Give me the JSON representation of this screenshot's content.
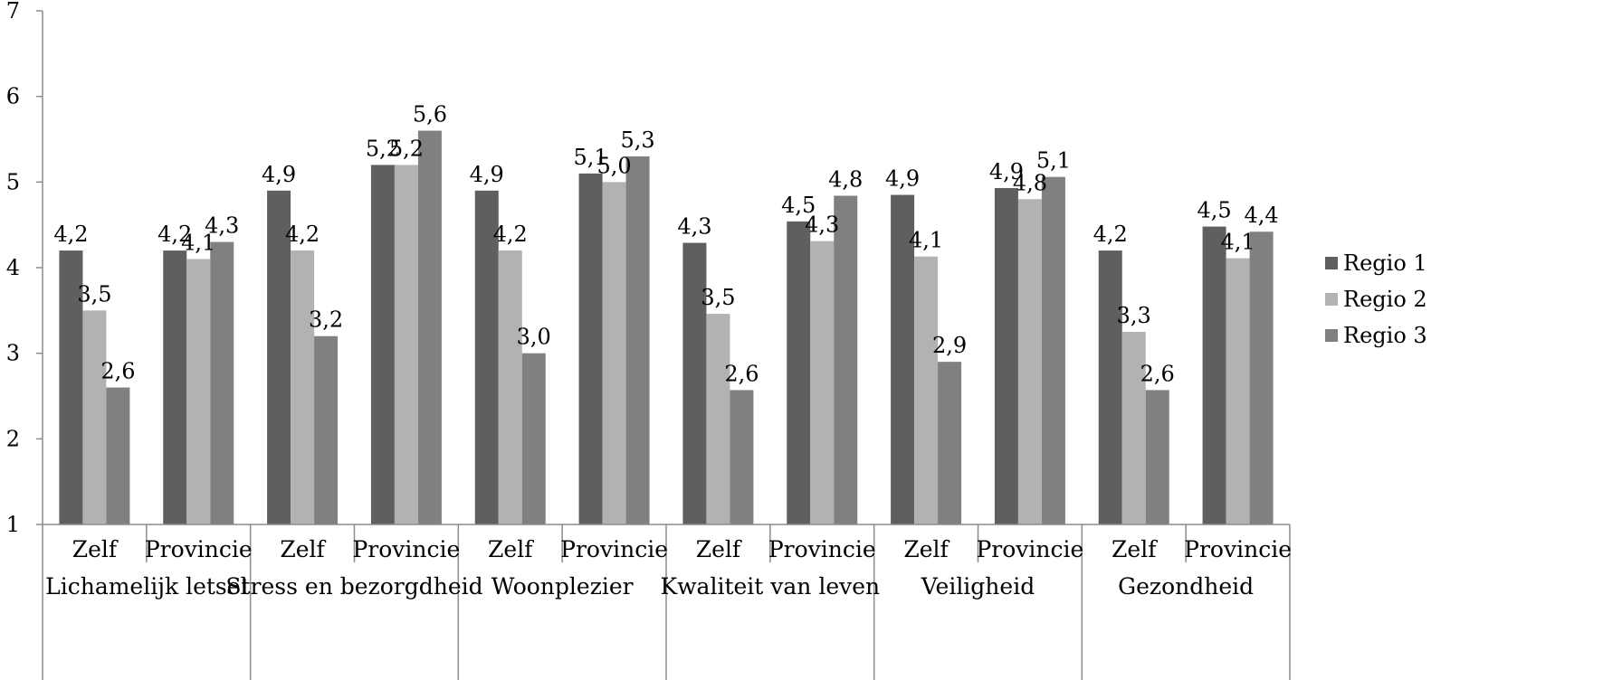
{
  "chart_data": {
    "type": "bar",
    "title": "",
    "xlabel": "",
    "ylabel": "",
    "ylim": [
      1,
      7
    ],
    "yticks": [
      "1",
      "2",
      "3",
      "4",
      "5",
      "6",
      "7"
    ],
    "grid": false,
    "legend_position": "right",
    "groups": [
      {
        "label": "Lichamelijk letsel",
        "subcategories": [
          "Zelf",
          "Provincie"
        ]
      },
      {
        "label": "Stress en bezorgdheid",
        "subcategories": [
          "Zelf",
          "Provincie"
        ]
      },
      {
        "label": "Woonplezier",
        "subcategories": [
          "Zelf",
          "Provincie"
        ]
      },
      {
        "label": "Kwaliteit van leven",
        "subcategories": [
          "Zelf",
          "Provincie"
        ]
      },
      {
        "label": "Veiligheid",
        "subcategories": [
          "Zelf",
          "Provincie"
        ]
      },
      {
        "label": "Gezondheid",
        "subcategories": [
          "Zelf",
          "Provincie"
        ]
      }
    ],
    "categories": [
      "Zelf",
      "Provincie",
      "Zelf",
      "Provincie",
      "Zelf",
      "Provincie",
      "Zelf",
      "Provincie",
      "Zelf",
      "Provincie",
      "Zelf",
      "Provincie"
    ],
    "series": [
      {
        "name": "Regio 1",
        "color": "#5f5f5f",
        "values": [
          4.2,
          4.2,
          4.9,
          5.2,
          4.9,
          5.1,
          4.29,
          4.54,
          4.85,
          4.93,
          4.2,
          4.48
        ],
        "labels": [
          "4,2",
          "4,2",
          "4,9",
          "5,2",
          "4,9",
          "5,1",
          "4,3",
          "4,5",
          "4,9",
          "4,9",
          "4,2",
          "4,5"
        ]
      },
      {
        "name": "Regio 2",
        "color": "#b2b2b2",
        "values": [
          3.5,
          4.1,
          4.2,
          5.2,
          4.2,
          5.0,
          3.46,
          4.31,
          4.13,
          4.8,
          3.25,
          4.11
        ],
        "labels": [
          "3,5",
          "4,1",
          "4,2",
          "5,2",
          "4,2",
          "5,0",
          "3,5",
          "4,3",
          "4,1",
          "4,8",
          "3,3",
          "4,1"
        ]
      },
      {
        "name": "Regio 3",
        "color": "#808080",
        "values": [
          2.6,
          4.3,
          3.2,
          5.6,
          3.0,
          5.3,
          2.57,
          4.84,
          2.9,
          5.06,
          2.57,
          4.42
        ],
        "labels": [
          "2,6",
          "4,3",
          "3,2",
          "5,6",
          "3,0",
          "5,3",
          "2,6",
          "4,8",
          "2,9",
          "5,1",
          "2,6",
          "4,4"
        ]
      }
    ]
  }
}
